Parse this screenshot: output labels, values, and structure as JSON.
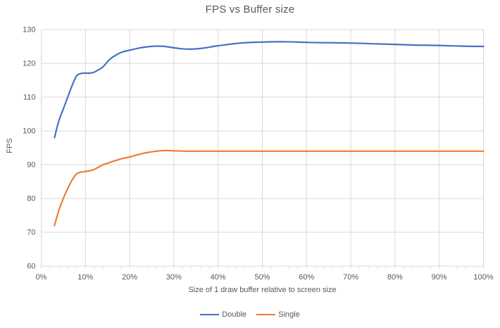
{
  "chart_data": {
    "type": "line",
    "title": "FPS vs Buffer size",
    "xlabel": "Size of 1 draw buffer relative to screen size",
    "ylabel": "FPS",
    "xlim": [
      0,
      100
    ],
    "ylim": [
      60,
      130
    ],
    "x_ticks_major": [
      0,
      10,
      20,
      30,
      40,
      50,
      60,
      70,
      80,
      90,
      100
    ],
    "x_tick_labels": [
      "0%",
      "10%",
      "20%",
      "30%",
      "40%",
      "50%",
      "60%",
      "70%",
      "80%",
      "90%",
      "100%"
    ],
    "x_minor_tick_step": 2,
    "y_ticks": [
      60,
      70,
      80,
      90,
      100,
      110,
      120,
      130
    ],
    "y_tick_labels": [
      "60",
      "70",
      "80",
      "90",
      "100",
      "110",
      "120",
      "130"
    ],
    "grid": true,
    "smooth_lines": true,
    "legend_position": "bottom",
    "grid_color": "#D9D9D9",
    "axis_color": "#D9D9D9",
    "text_color": "#595959",
    "series": [
      {
        "name": "Double",
        "color": "#4472C4",
        "points": [
          [
            3,
            98
          ],
          [
            4,
            103
          ],
          [
            5,
            106.5
          ],
          [
            6,
            110
          ],
          [
            7,
            113.5
          ],
          [
            8,
            116.3
          ],
          [
            9,
            117
          ],
          [
            10,
            117.1
          ],
          [
            11,
            117.1
          ],
          [
            12,
            117.4
          ],
          [
            13,
            118.1
          ],
          [
            14,
            119
          ],
          [
            15,
            120.5
          ],
          [
            16,
            121.7
          ],
          [
            17,
            122.5
          ],
          [
            18,
            123.2
          ],
          [
            19,
            123.6
          ],
          [
            20,
            123.9
          ],
          [
            22,
            124.5
          ],
          [
            24,
            124.9
          ],
          [
            26,
            125.1
          ],
          [
            28,
            125
          ],
          [
            30,
            124.6
          ],
          [
            33,
            124.2
          ],
          [
            36,
            124.4
          ],
          [
            40,
            125.2
          ],
          [
            45,
            126
          ],
          [
            50,
            126.3
          ],
          [
            55,
            126.4
          ],
          [
            60,
            126.2
          ],
          [
            65,
            126.1
          ],
          [
            70,
            126
          ],
          [
            75,
            125.8
          ],
          [
            80,
            125.6
          ],
          [
            85,
            125.4
          ],
          [
            90,
            125.3
          ],
          [
            95,
            125.1
          ],
          [
            100,
            125
          ]
        ]
      },
      {
        "name": "Single",
        "color": "#ED7D31",
        "points": [
          [
            3,
            72
          ],
          [
            4,
            76.5
          ],
          [
            5,
            80
          ],
          [
            6,
            83
          ],
          [
            7,
            85.5
          ],
          [
            8,
            87.3
          ],
          [
            9,
            87.8
          ],
          [
            10,
            88
          ],
          [
            11,
            88.2
          ],
          [
            12,
            88.6
          ],
          [
            13,
            89.3
          ],
          [
            14,
            90
          ],
          [
            15,
            90.4
          ],
          [
            16,
            90.9
          ],
          [
            17,
            91.3
          ],
          [
            18,
            91.7
          ],
          [
            20,
            92.3
          ],
          [
            22,
            93
          ],
          [
            24,
            93.6
          ],
          [
            26,
            94
          ],
          [
            28,
            94.2
          ],
          [
            30,
            94.1
          ],
          [
            33,
            94
          ],
          [
            36,
            94
          ],
          [
            40,
            94
          ],
          [
            45,
            94
          ],
          [
            50,
            94
          ],
          [
            55,
            94
          ],
          [
            60,
            94
          ],
          [
            65,
            94
          ],
          [
            70,
            94
          ],
          [
            75,
            94
          ],
          [
            80,
            94
          ],
          [
            85,
            94
          ],
          [
            90,
            94
          ],
          [
            95,
            94
          ],
          [
            100,
            94
          ]
        ]
      }
    ]
  }
}
